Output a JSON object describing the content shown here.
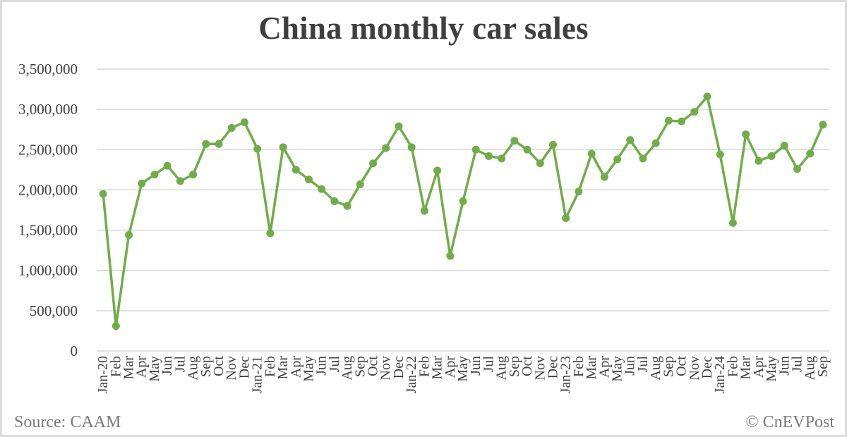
{
  "title": "China monthly car sales",
  "footer": {
    "source": "Source: CAAM",
    "credit": "© CnEVPost"
  },
  "colors": {
    "line": "#70AD47",
    "grid": "#d9d9d9",
    "text": "#404040"
  },
  "chart_data": {
    "type": "line",
    "title": "China monthly car sales",
    "xlabel": "",
    "ylabel": "",
    "ylim": [
      0,
      3500000
    ],
    "yticks": [
      0,
      500000,
      1000000,
      1500000,
      2000000,
      2500000,
      3000000,
      3500000
    ],
    "ytick_labels": [
      "0",
      "500,000",
      "1,000,000",
      "1,500,000",
      "2,000,000",
      "2,500,000",
      "3,000,000",
      "3,500,000"
    ],
    "grid": true,
    "legend": "none",
    "markers": true,
    "categories": [
      "Jan-20",
      "Feb",
      "Mar",
      "Apr",
      "May",
      "Jun",
      "Jul",
      "Aug",
      "Sep",
      "Oct",
      "Nov",
      "Dec",
      "Jan-21",
      "Feb",
      "Mar",
      "Apr",
      "May",
      "Jun",
      "Jul",
      "Aug",
      "Sep",
      "Oct",
      "Nov",
      "Dec",
      "Jan-22",
      "Feb",
      "Mar",
      "Apr",
      "May",
      "Jun",
      "Jul",
      "Aug",
      "Sep",
      "Oct",
      "Nov",
      "Dec",
      "Jan-23",
      "Feb",
      "Mar",
      "Apr",
      "May",
      "Jun",
      "Jul",
      "Aug",
      "Sep",
      "Oct",
      "Nov",
      "Dec",
      "Jan-24",
      "Feb",
      "Mar",
      "Apr",
      "May",
      "Jun",
      "Jul",
      "Aug",
      "Sep"
    ],
    "series": [
      {
        "name": "Car sales",
        "values": [
          1950000,
          310000,
          1440000,
          2080000,
          2190000,
          2300000,
          2110000,
          2190000,
          2570000,
          2570000,
          2770000,
          2840000,
          2510000,
          1460000,
          2530000,
          2250000,
          2130000,
          2010000,
          1860000,
          1800000,
          2070000,
          2330000,
          2520000,
          2790000,
          2530000,
          1740000,
          2240000,
          1180000,
          1860000,
          2500000,
          2420000,
          2390000,
          2610000,
          2500000,
          2330000,
          2560000,
          1650000,
          1980000,
          2450000,
          2160000,
          2380000,
          2620000,
          2390000,
          2580000,
          2860000,
          2850000,
          2970000,
          3160000,
          2440000,
          1590000,
          2690000,
          2360000,
          2420000,
          2550000,
          2260000,
          2450000,
          2810000
        ]
      }
    ]
  }
}
